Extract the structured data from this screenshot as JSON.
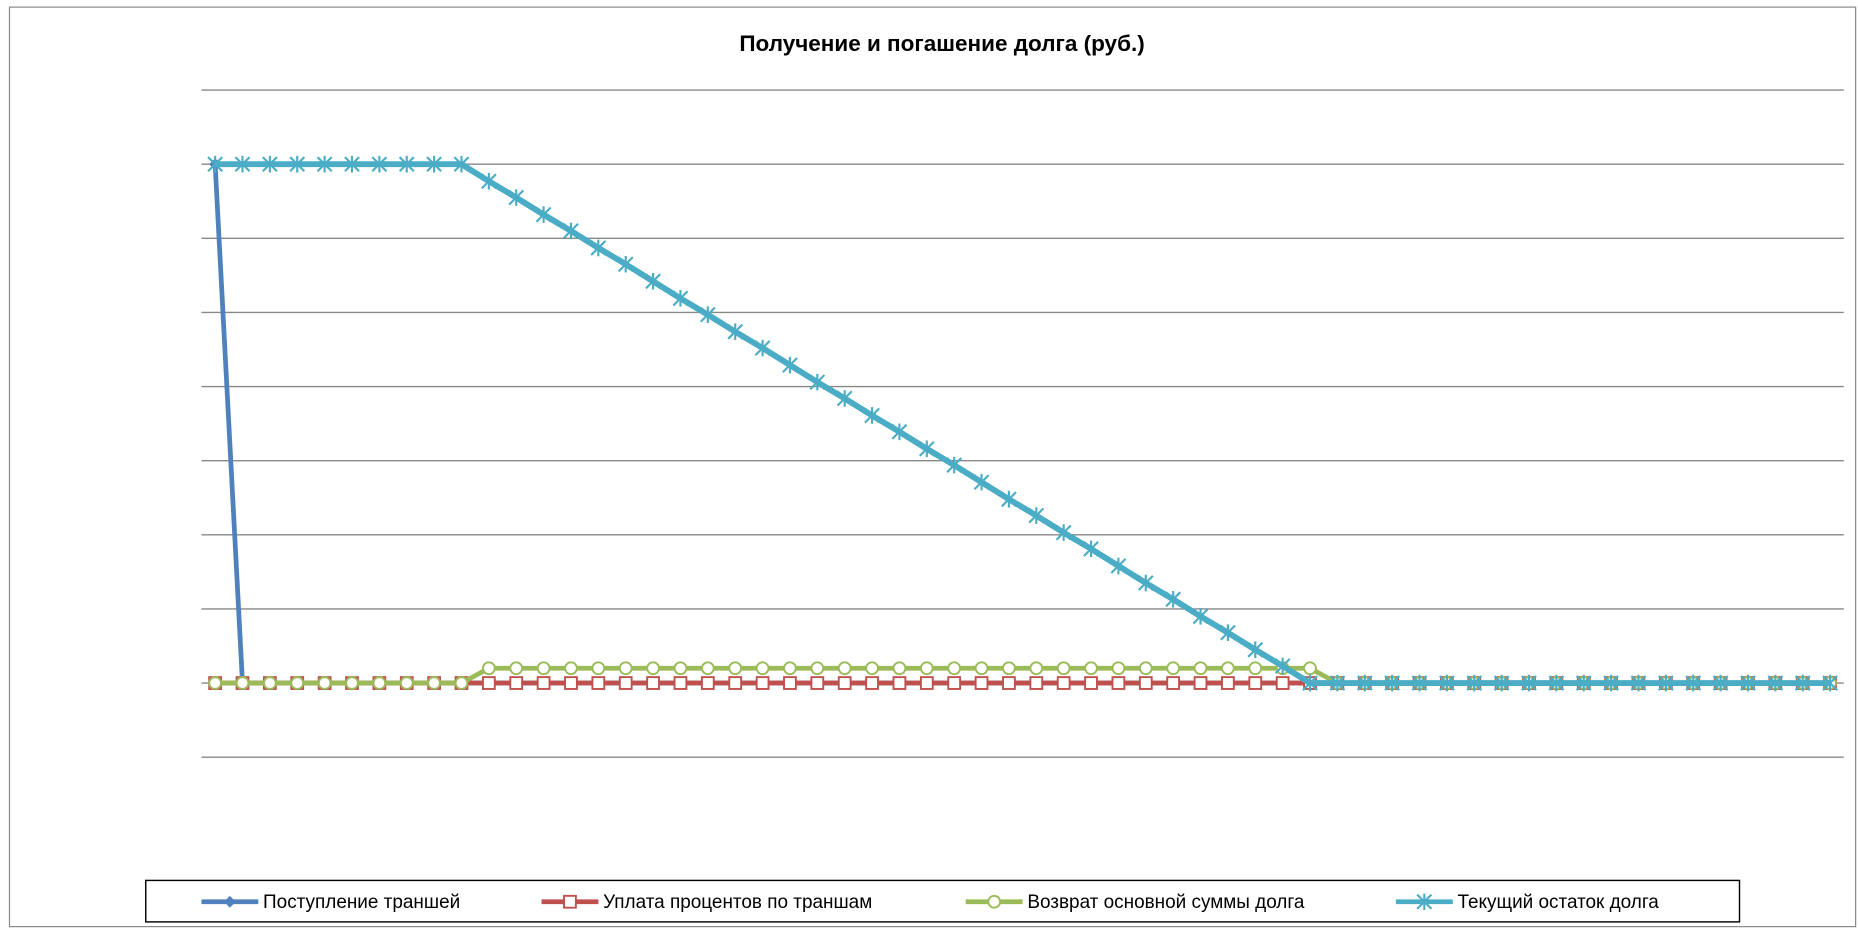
{
  "chart_data": {
    "type": "line",
    "title": "Получение и погашение долга (руб.)",
    "categories": [
      null,
      null,
      null,
      null,
      null,
      null,
      null,
      null,
      null,
      null,
      null,
      null,
      null,
      null,
      null,
      null,
      null,
      null,
      null,
      null,
      null,
      null,
      null,
      null,
      null,
      null,
      null,
      null,
      null,
      null,
      null,
      null,
      null,
      null,
      null,
      null,
      null,
      null,
      null,
      null,
      null,
      null,
      null,
      null,
      null,
      null,
      null,
      null,
      null,
      null,
      null,
      null,
      null,
      null,
      null,
      null,
      null,
      null,
      null,
      null
    ],
    "ylim": [
      -1,
      8
    ],
    "yticks": [
      -1,
      0,
      1,
      2,
      3,
      4,
      5,
      6,
      7,
      8
    ],
    "grid": true,
    "legend": "bottom",
    "series": [
      {
        "name": "Поступление траншей",
        "color": "#4f81bd",
        "marker": "diamond",
        "values": [
          7,
          0,
          0,
          0,
          0,
          0,
          0,
          0,
          0,
          0,
          0,
          0,
          0,
          0,
          0,
          0,
          0,
          0,
          0,
          0,
          0,
          0,
          0,
          0,
          0,
          0,
          0,
          0,
          0,
          0,
          0,
          0,
          0,
          0,
          0,
          0,
          0,
          0,
          0,
          0,
          0,
          0,
          0,
          0,
          0,
          0,
          0,
          0,
          0,
          0,
          0,
          0,
          0,
          0,
          0,
          0,
          0,
          0,
          0,
          0
        ]
      },
      {
        "name": "Уплата процентов по траншам",
        "color": "#c0504d",
        "marker": "square",
        "values": [
          0,
          0,
          0,
          0,
          0,
          0,
          0,
          0,
          0,
          0,
          0,
          0,
          0,
          0,
          0,
          0,
          0,
          0,
          0,
          0,
          0,
          0,
          0,
          0,
          0,
          0,
          0,
          0,
          0,
          0,
          0,
          0,
          0,
          0,
          0,
          0,
          0,
          0,
          0,
          0,
          0,
          0,
          0,
          0,
          0,
          0,
          0,
          0,
          0,
          0,
          0,
          0,
          0,
          0,
          0,
          0,
          0,
          0,
          0,
          0
        ]
      },
      {
        "name": "Возврат основной суммы долга",
        "color": "#9bbb59",
        "marker": "circle",
        "values": [
          0,
          0,
          0,
          0,
          0,
          0,
          0,
          0,
          0,
          0,
          0.2,
          0.2,
          0.2,
          0.2,
          0.2,
          0.2,
          0.2,
          0.2,
          0.2,
          0.2,
          0.2,
          0.2,
          0.2,
          0.2,
          0.2,
          0.2,
          0.2,
          0.2,
          0.2,
          0.2,
          0.2,
          0.2,
          0.2,
          0.2,
          0.2,
          0.2,
          0.2,
          0.2,
          0.2,
          0.2,
          0.2,
          0,
          0,
          0,
          0,
          0,
          0,
          0,
          0,
          0,
          0,
          0,
          0,
          0,
          0,
          0,
          0,
          0,
          0,
          0
        ]
      },
      {
        "name": "Текущий остаток долга",
        "color": "#4bacc6",
        "marker": "star",
        "values": [
          7,
          7,
          7,
          7,
          7,
          7,
          7,
          7,
          7,
          7,
          6.77,
          6.55,
          6.32,
          6.1,
          5.87,
          5.65,
          5.42,
          5.19,
          4.97,
          4.74,
          4.52,
          4.29,
          4.06,
          3.84,
          3.61,
          3.39,
          3.16,
          2.94,
          2.71,
          2.48,
          2.26,
          2.03,
          1.81,
          1.58,
          1.35,
          1.13,
          0.9,
          0.68,
          0.45,
          0.23,
          0,
          0,
          0,
          0,
          0,
          0,
          0,
          0,
          0,
          0,
          0,
          0,
          0,
          0,
          0,
          0,
          0,
          0,
          0,
          0
        ]
      }
    ]
  }
}
